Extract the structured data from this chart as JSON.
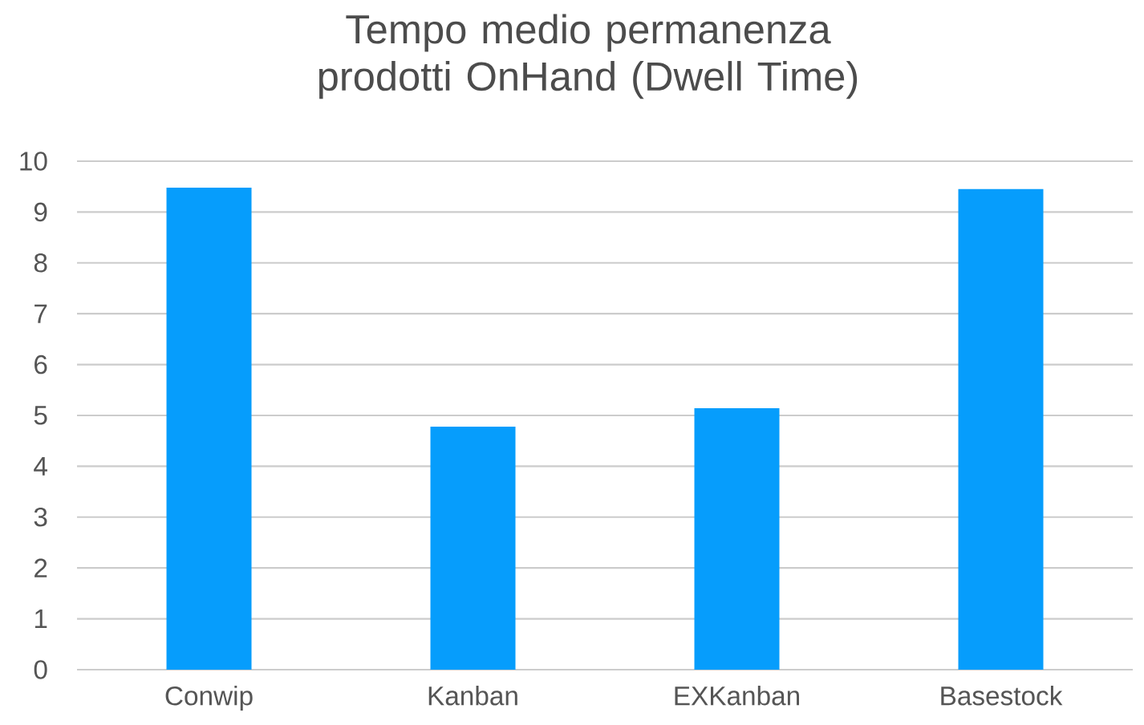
{
  "chart_data": {
    "type": "bar",
    "title": "Tempo medio permanenza prodotti OnHand (Dwell Time)",
    "categories": [
      "Conwip",
      "Kanban",
      "EXKanban",
      "Basestock"
    ],
    "values": [
      9.48,
      4.78,
      5.14,
      9.45
    ],
    "color": "#069dfc",
    "ylim": [
      0,
      10
    ],
    "yticks": [
      0,
      1,
      2,
      3,
      4,
      5,
      6,
      7,
      8,
      9,
      10
    ],
    "grid": "y"
  }
}
